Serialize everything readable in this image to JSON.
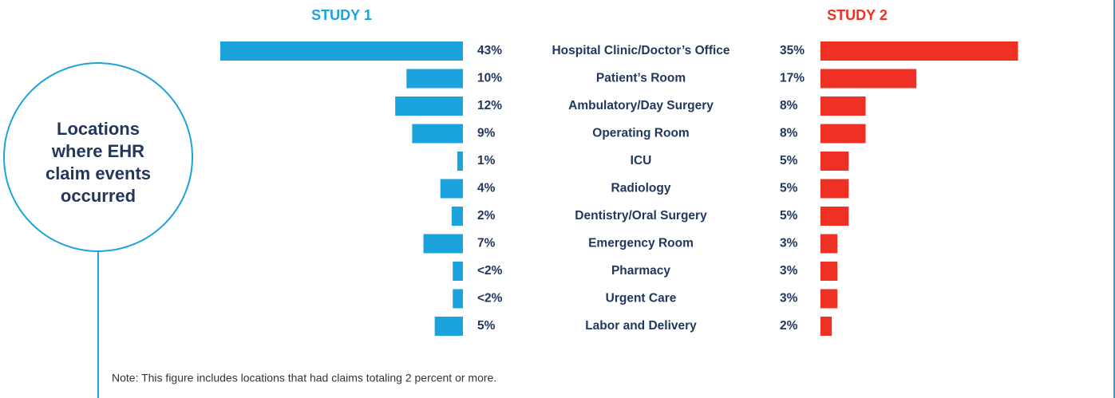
{
  "chart_data": {
    "type": "butterfly-bar",
    "annotation": [
      "Locations",
      "where EHR",
      "claim events",
      "occurred"
    ],
    "note": "Note: This figure includes locations that had claims totaling 2 percent or more.",
    "categories": [
      "Hospital Clinic/Doctor’s Office",
      "Patient’s Room",
      "Ambulatory/Day Surgery",
      "Operating Room",
      "ICU",
      "Radiology",
      "Dentistry/Oral Surgery",
      "Emergency Room",
      "Pharmacy",
      "Urgent Care",
      "Labor and Delivery"
    ],
    "series": [
      {
        "name": "STUDY 1",
        "color": "#1ba3dd",
        "values": [
          43,
          10,
          12,
          9,
          1,
          4,
          2,
          7,
          1.8,
          1.8,
          5
        ],
        "value_labels": [
          "43%",
          "10%",
          "12%",
          "9%",
          "1%",
          "4%",
          "2%",
          "7%",
          "<2%",
          "<2%",
          "5%"
        ]
      },
      {
        "name": "STUDY 2",
        "color": "#ee3124",
        "values": [
          35,
          17,
          8,
          8,
          5,
          5,
          5,
          3,
          3,
          3,
          2
        ],
        "value_labels": [
          "35%",
          "17%",
          "8%",
          "8%",
          "5%",
          "5%",
          "5%",
          "3%",
          "3%",
          "3%",
          "2%"
        ]
      }
    ]
  }
}
